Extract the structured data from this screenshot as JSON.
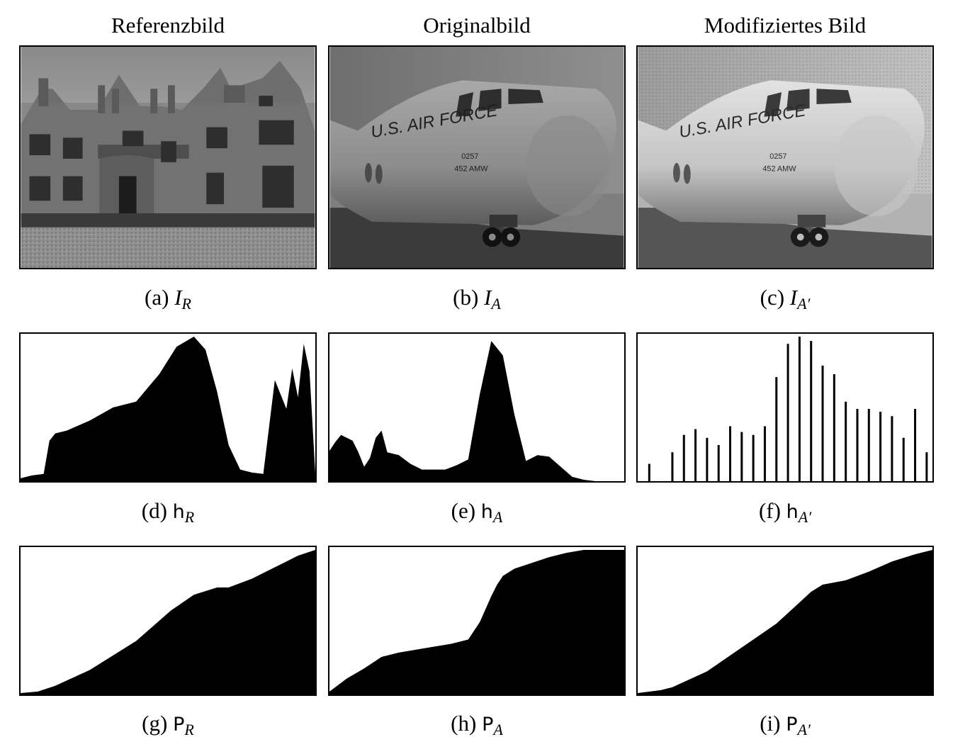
{
  "column_titles": [
    "Referenzbild",
    "Originalbild",
    "Modifiziertes Bild"
  ],
  "image_text": {
    "airforce_b": "U.S. AIR FORCE",
    "tail_b": "0257",
    "unit_b": "452 AMW",
    "airforce_c": "U.S. AIR FORCE",
    "tail_c": "0257",
    "unit_c": "452 AMW"
  },
  "captions": [
    {
      "label": "(a)",
      "sym": "I",
      "sub": "R"
    },
    {
      "label": "(b)",
      "sym": "I",
      "sub": "A"
    },
    {
      "label": "(c)",
      "sym": "I",
      "sub": "A′"
    },
    {
      "label": "(d)",
      "sym": "h",
      "sub": "R"
    },
    {
      "label": "(e)",
      "sym": "h",
      "sub": "A"
    },
    {
      "label": "(f)",
      "sym": "h",
      "sub": "A′"
    },
    {
      "label": "(g)",
      "sym": "P",
      "sub": "R"
    },
    {
      "label": "(h)",
      "sym": "P",
      "sub": "A"
    },
    {
      "label": "(i)",
      "sym": "P",
      "sub": "A′"
    }
  ],
  "chart_data": [
    {
      "type": "area",
      "name": "h_R",
      "x_range": [
        0,
        255
      ],
      "ylim": [
        0,
        1
      ],
      "x": [
        0,
        10,
        20,
        25,
        30,
        40,
        60,
        80,
        100,
        120,
        135,
        150,
        160,
        170,
        180,
        190,
        200,
        210,
        220,
        230,
        235,
        240,
        245,
        250,
        255
      ],
      "y": [
        0.02,
        0.04,
        0.05,
        0.28,
        0.33,
        0.35,
        0.42,
        0.51,
        0.55,
        0.74,
        0.93,
        1.0,
        0.91,
        0.62,
        0.25,
        0.08,
        0.06,
        0.05,
        0.7,
        0.5,
        0.78,
        0.58,
        0.95,
        0.76,
        0.05
      ]
    },
    {
      "type": "area",
      "name": "h_A",
      "x_range": [
        0,
        255
      ],
      "ylim": [
        0,
        1
      ],
      "x": [
        0,
        5,
        10,
        20,
        25,
        30,
        35,
        40,
        45,
        50,
        60,
        70,
        80,
        90,
        100,
        110,
        120,
        130,
        140,
        150,
        160,
        170,
        180,
        190,
        200,
        210,
        220,
        230,
        240,
        245,
        250,
        255
      ],
      "y": [
        0.21,
        0.27,
        0.32,
        0.28,
        0.2,
        0.1,
        0.16,
        0.3,
        0.35,
        0.2,
        0.18,
        0.12,
        0.08,
        0.08,
        0.08,
        0.11,
        0.15,
        0.6,
        0.97,
        0.87,
        0.46,
        0.14,
        0.18,
        0.17,
        0.1,
        0.03,
        0.01,
        0,
        0,
        0,
        0,
        0
      ]
    },
    {
      "type": "bar",
      "name": "h_A′",
      "x_range": [
        0,
        255
      ],
      "ylim": [
        0,
        1
      ],
      "x": [
        10,
        30,
        40,
        50,
        60,
        70,
        80,
        90,
        100,
        110,
        120,
        130,
        140,
        150,
        160,
        170,
        180,
        190,
        200,
        210,
        220,
        230,
        240,
        250
      ],
      "y": [
        0.12,
        0.2,
        0.32,
        0.36,
        0.3,
        0.25,
        0.38,
        0.34,
        0.32,
        0.38,
        0.72,
        0.95,
        1.0,
        0.97,
        0.8,
        0.74,
        0.55,
        0.5,
        0.5,
        0.48,
        0.45,
        0.3,
        0.5,
        0.2
      ]
    },
    {
      "type": "area",
      "name": "P_R",
      "x_range": [
        0,
        255
      ],
      "ylim": [
        0,
        1
      ],
      "x": [
        0,
        15,
        30,
        60,
        100,
        130,
        150,
        170,
        180,
        190,
        200,
        210,
        220,
        230,
        240,
        255
      ],
      "y": [
        0.01,
        0.02,
        0.06,
        0.17,
        0.37,
        0.58,
        0.69,
        0.74,
        0.74,
        0.77,
        0.8,
        0.84,
        0.88,
        0.92,
        0.96,
        1.0
      ]
    },
    {
      "type": "area",
      "name": "P_A",
      "x_range": [
        0,
        255
      ],
      "ylim": [
        0,
        1
      ],
      "x": [
        0,
        15,
        30,
        45,
        60,
        75,
        90,
        105,
        120,
        130,
        140,
        145,
        150,
        160,
        175,
        190,
        205,
        220,
        230,
        255
      ],
      "y": [
        0.02,
        0.11,
        0.18,
        0.26,
        0.29,
        0.31,
        0.33,
        0.35,
        0.38,
        0.5,
        0.68,
        0.76,
        0.82,
        0.87,
        0.91,
        0.95,
        0.98,
        1.0,
        1.0,
        1.0
      ]
    },
    {
      "type": "area",
      "name": "P_A′",
      "x_range": [
        0,
        255
      ],
      "ylim": [
        0,
        1
      ],
      "x": [
        0,
        20,
        30,
        60,
        100,
        120,
        135,
        150,
        160,
        180,
        200,
        220,
        240,
        255
      ],
      "y": [
        0.01,
        0.03,
        0.05,
        0.16,
        0.38,
        0.49,
        0.6,
        0.71,
        0.76,
        0.79,
        0.85,
        0.92,
        0.97,
        1.0
      ]
    }
  ]
}
